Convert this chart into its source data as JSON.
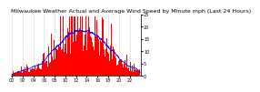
{
  "title": "Milwaukee Weather Actual and Average Wind Speed by Minute mph (Last 24 Hours)",
  "n_points": 1440,
  "ylim": [
    0,
    25
  ],
  "yticks": [
    0,
    5,
    10,
    15,
    20,
    25
  ],
  "bar_color": "#FF0000",
  "line_color": "#0000FF",
  "background_color": "#FFFFFF",
  "grid_color": "#AAAAAA",
  "title_fontsize": 4.5,
  "tick_fontsize": 3.5,
  "seed": 42
}
